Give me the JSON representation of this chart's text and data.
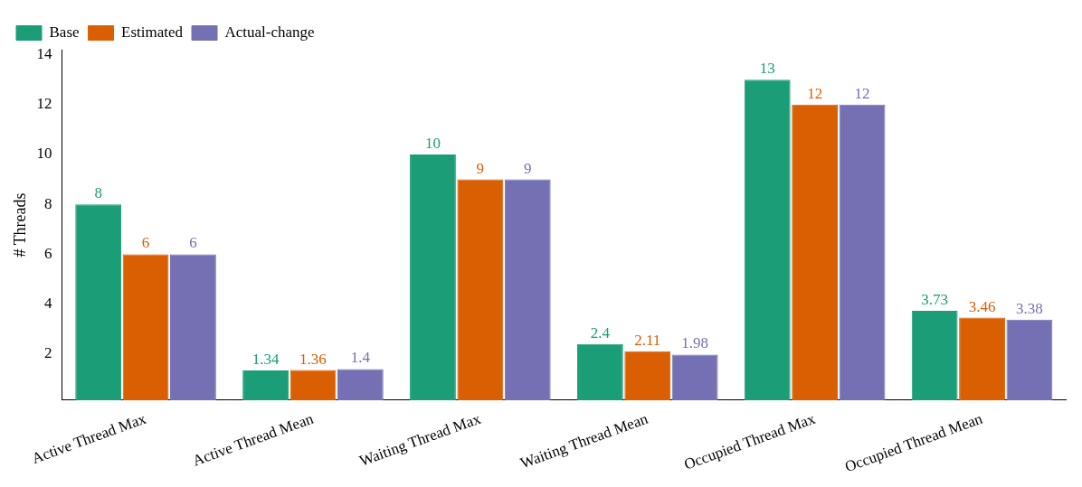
{
  "chart_data": {
    "type": "bar",
    "ylabel": "# Threads",
    "categories": [
      "Active Thread Max",
      "Active Thread Mean",
      "Waiting Thread Max",
      "Waiting Thread Mean",
      "Occupied Thread Max",
      "Occupied Thread Mean"
    ],
    "series": [
      {
        "name": "Base",
        "color": "#1b9e77",
        "values": [
          8,
          1.34,
          10,
          2.4,
          13,
          3.73
        ]
      },
      {
        "name": "Estimated",
        "color": "#d95f02",
        "values": [
          6,
          1.36,
          9,
          2.11,
          12,
          3.46
        ]
      },
      {
        "name": "Actual-change",
        "color": "#7570b3",
        "values": [
          6,
          1.4,
          9,
          1.98,
          12,
          3.38
        ]
      }
    ],
    "ylim": [
      0.15,
      14.2
    ],
    "yticks": [
      2,
      4,
      6,
      8,
      10,
      12,
      14
    ],
    "grid": false,
    "legend": "top left",
    "data_labels": true
  }
}
